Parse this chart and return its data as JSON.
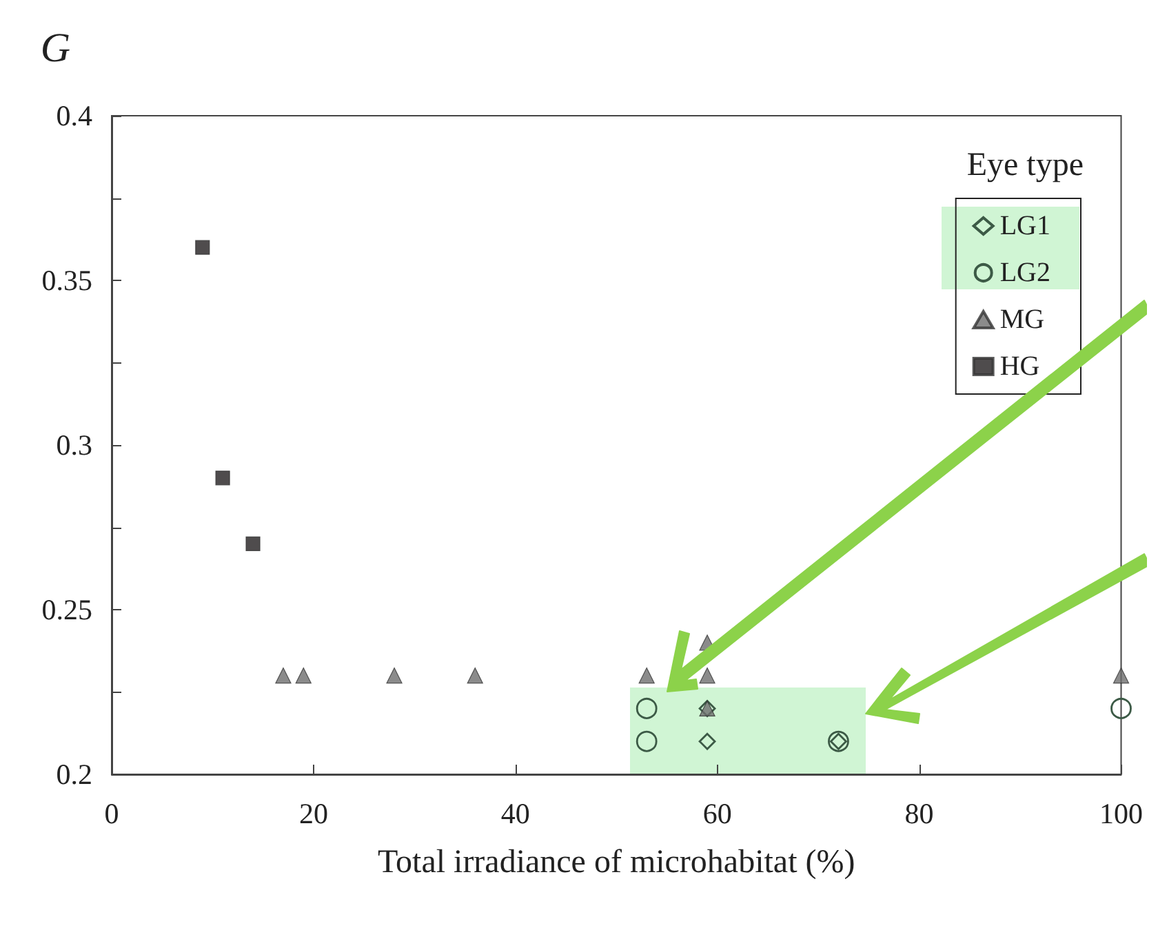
{
  "chart_data": {
    "type": "scatter",
    "xlabel": "Total irradiance of microhabitat (%)",
    "ylabel": "G",
    "legend_title": "Eye type",
    "legend": "top right",
    "grid": false,
    "xlim": [
      0,
      100
    ],
    "xticks": [
      0,
      20,
      40,
      60,
      80,
      100
    ],
    "ylim": [
      0.2,
      0.4
    ],
    "yticks": [
      0.2,
      0.25,
      0.3,
      0.35,
      0.4
    ],
    "series": [
      {
        "name": "LG1",
        "color": "#3c5a46",
        "marker": "diamond",
        "x": [
          59,
          72,
          59
        ],
        "values": [
          0.21,
          0.21,
          0.22
        ]
      },
      {
        "name": "LG2",
        "color": "#3c5a46",
        "marker": "circle",
        "x": [
          53,
          53,
          72,
          100
        ],
        "values": [
          0.22,
          0.21,
          0.21,
          0.22
        ]
      },
      {
        "name": "MG",
        "color": "#6e6e6e",
        "marker": "triangle",
        "x": [
          17,
          19,
          28,
          36,
          53,
          59,
          59,
          59,
          100
        ],
        "values": [
          0.23,
          0.23,
          0.23,
          0.23,
          0.23,
          0.23,
          0.24,
          0.22,
          0.23
        ]
      },
      {
        "name": "HG",
        "color": "#231f20",
        "marker": "square",
        "x": [
          9,
          11,
          14
        ],
        "values": [
          0.36,
          0.29,
          0.27
        ]
      }
    ]
  }
}
